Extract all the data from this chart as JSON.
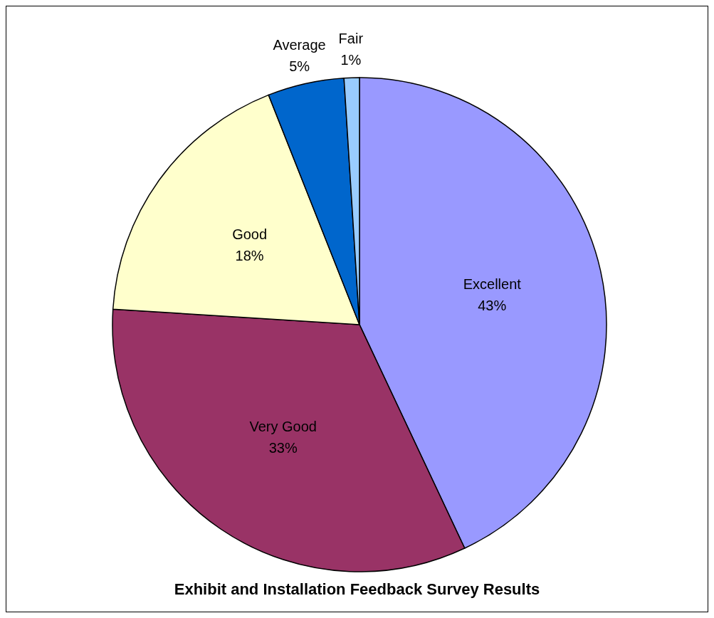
{
  "chart_data": {
    "type": "pie",
    "title": "Exhibit and Installation Feedback Survey Results",
    "categories": [
      "Excellent",
      "Very Good",
      "Good",
      "Average",
      "Fair"
    ],
    "values": [
      43,
      33,
      18,
      5,
      1
    ],
    "value_labels": [
      "43%",
      "33%",
      "18%",
      "5%",
      "1%"
    ],
    "colors": [
      "#9999ff",
      "#993366",
      "#ffffcc",
      "#0066cc",
      "#99ccff"
    ]
  }
}
